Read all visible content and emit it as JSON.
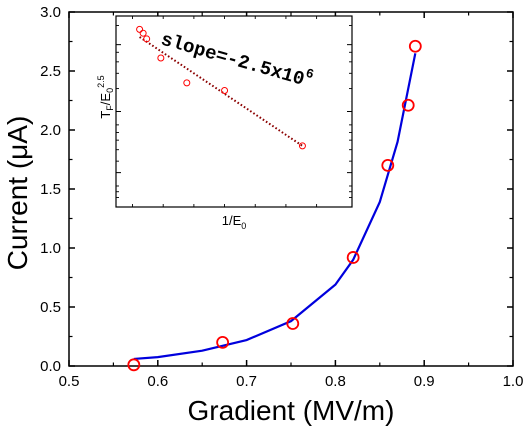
{
  "chart_data": [
    {
      "type": "scatter",
      "xlabel": "Gradient (MV/m)",
      "ylabel": "Current (μA)",
      "xlim": [
        0.5,
        1.0
      ],
      "ylim": [
        0.0,
        3.0
      ],
      "xticks": [
        "0.5",
        "0.6",
        "0.7",
        "0.8",
        "0.9",
        "1.0"
      ],
      "yticks": [
        "0.0",
        "0.5",
        "1.0",
        "1.5",
        "2.0",
        "2.5",
        "3.0"
      ],
      "grid": false,
      "series": [
        {
          "kind": "points",
          "marker": "open-circle",
          "color": "#ff0000",
          "x": [
            0.573,
            0.673,
            0.752,
            0.82,
            0.859,
            0.882,
            0.89
          ],
          "y": [
            0.01,
            0.2,
            0.36,
            0.92,
            1.7,
            2.21,
            2.71
          ]
        },
        {
          "kind": "fit-line",
          "color": "#0000dd",
          "x": [
            0.573,
            0.6,
            0.65,
            0.7,
            0.75,
            0.8,
            0.82,
            0.85,
            0.87,
            0.89
          ],
          "y": [
            0.06,
            0.075,
            0.13,
            0.22,
            0.38,
            0.69,
            0.9,
            1.39,
            1.9,
            2.65
          ]
        }
      ]
    },
    {
      "type": "scatter",
      "inset": true,
      "xlabel": "1/E",
      "xlabel_sub": "0",
      "ylabel_pre": "T",
      "ylabel_sub1": "F",
      "ylabel_mid": "/E",
      "ylabel_sub2": "0",
      "ylabel_sup": "2.5",
      "annotation_text": "slope=-2.5x10",
      "annotation_sup": "6",
      "grid": false,
      "log_y": true,
      "xlim": [
        0.0,
        1.0
      ],
      "ylim": [
        0.0,
        1.0
      ],
      "series": [
        {
          "kind": "points",
          "marker": "open-circle",
          "color": "#ff0000",
          "x": [
            0.1,
            0.115,
            0.13,
            0.19,
            0.3,
            0.46,
            0.79
          ],
          "y": [
            0.93,
            0.91,
            0.88,
            0.78,
            0.65,
            0.61,
            0.32
          ]
        },
        {
          "kind": "fit-line",
          "style": "dotted",
          "color": "#8b0000",
          "x": [
            0.1,
            0.79
          ],
          "y": [
            0.89,
            0.32
          ]
        }
      ]
    }
  ]
}
